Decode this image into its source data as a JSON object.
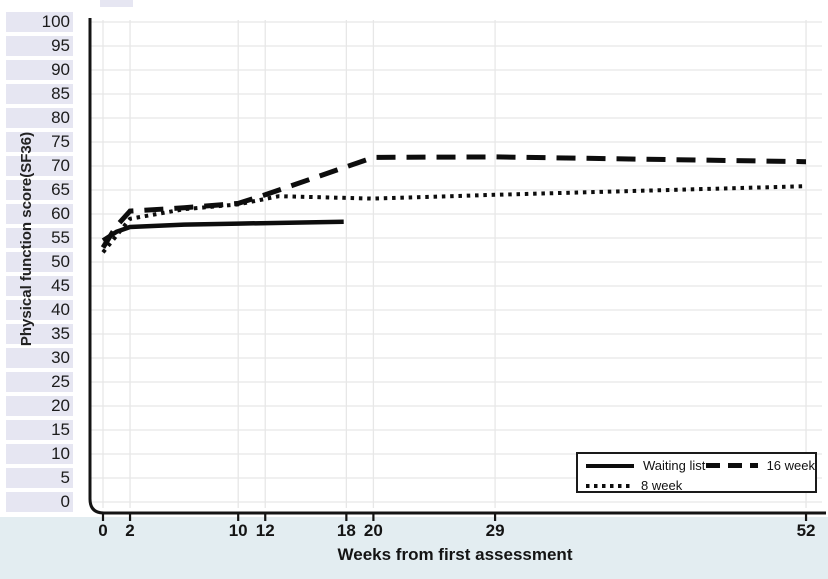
{
  "figure": {
    "background_color": "#ffffff",
    "band_color": "#e6e6f2",
    "bottom_strip_color": "#e3edf1",
    "grid_color": "#e7e7e7",
    "axis_color": "#141414",
    "line_color": "#0d0d0d"
  },
  "chart_data": {
    "type": "line",
    "title": "",
    "xlabel": "Weeks from first assessment",
    "ylabel": "Physical function score(SF36)",
    "xlim": [
      0,
      52
    ],
    "ylim": [
      0,
      100
    ],
    "x_ticks": [
      0,
      2,
      10,
      12,
      18,
      20,
      29,
      52
    ],
    "y_ticks": [
      100,
      95,
      90,
      85,
      80,
      75,
      70,
      65,
      60,
      55,
      50,
      45,
      40,
      35,
      30,
      25,
      20,
      15,
      10,
      5,
      0
    ],
    "grid": true,
    "legend_position": "bottom-right",
    "series": [
      {
        "name": "Waiting list",
        "style": "solid",
        "points": [
          [
            0,
            54.5
          ],
          [
            1,
            56.3
          ],
          [
            2,
            57.3
          ],
          [
            6,
            57.8
          ],
          [
            10,
            58.0
          ],
          [
            17.8,
            58.4
          ]
        ]
      },
      {
        "name": "8 week",
        "style": "dotted",
        "points": [
          [
            0,
            52
          ],
          [
            1,
            55.5
          ],
          [
            2,
            59
          ],
          [
            6,
            61
          ],
          [
            10,
            62
          ],
          [
            13,
            63.7
          ],
          [
            20,
            63.2
          ],
          [
            29,
            64
          ],
          [
            52,
            65.8
          ]
        ]
      },
      {
        "name": "16 week",
        "style": "dashed",
        "points": [
          [
            0,
            53
          ],
          [
            1,
            57.5
          ],
          [
            2,
            60.6
          ],
          [
            6,
            61.3
          ],
          [
            10,
            62.2
          ],
          [
            12,
            64
          ],
          [
            20,
            71.8
          ],
          [
            29,
            71.9
          ],
          [
            52,
            70.9
          ]
        ]
      }
    ]
  },
  "legend": {
    "items": [
      {
        "label": "Waiting list",
        "style": "solid"
      },
      {
        "label": "16 week",
        "style": "dashed"
      },
      {
        "label": "8 week",
        "style": "dotted"
      }
    ]
  }
}
